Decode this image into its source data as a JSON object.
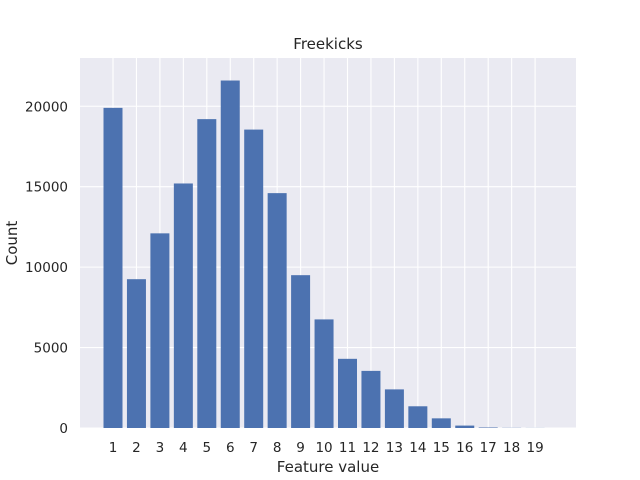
{
  "chart_data": {
    "type": "bar",
    "title": "Freekicks",
    "xlabel": "Feature value",
    "ylabel": "Count",
    "categories": [
      "1",
      "2",
      "3",
      "4",
      "5",
      "6",
      "7",
      "8",
      "9",
      "10",
      "11",
      "12",
      "13",
      "14",
      "15",
      "16",
      "17",
      "18",
      "19"
    ],
    "values": [
      19900,
      9250,
      12100,
      15200,
      19200,
      21600,
      18550,
      14600,
      9500,
      6750,
      4300,
      3550,
      2400,
      1350,
      600,
      150,
      30,
      10,
      5
    ],
    "ylim": [
      0,
      23000
    ],
    "yticks": [
      0,
      5000,
      10000,
      15000,
      20000
    ],
    "grid": true,
    "colors": {
      "bar": "#4c72b0",
      "plot_background": "#eaeaf2",
      "grid": "#ffffff",
      "text": "#262626"
    }
  }
}
